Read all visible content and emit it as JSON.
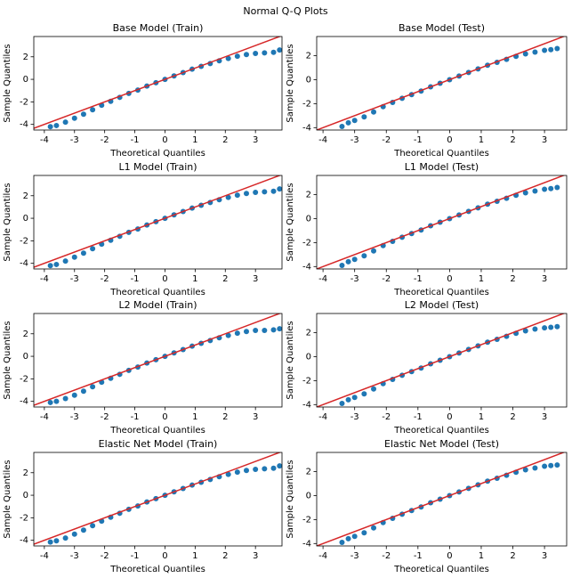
{
  "title": "Normal Q-Q Plots",
  "chart_data": [
    {
      "type": "scatter",
      "title": "Base Model (Train)",
      "xlabel": "Theoretical Quantiles",
      "ylabel": "Sample Quantiles",
      "xlim": [
        -4.35,
        3.88
      ],
      "ylim": [
        -4.5,
        3.8
      ],
      "xticks": [
        -4,
        -3,
        -2,
        -1,
        0,
        1,
        2,
        3
      ],
      "yticks": [
        -4,
        -2,
        0,
        2
      ],
      "series": [
        {
          "type": "scatter",
          "color": "#1f77b4",
          "x": [
            -3.8,
            -3.6,
            -3.3,
            -3.0,
            -2.7,
            -2.4,
            -2.1,
            -1.8,
            -1.5,
            -1.2,
            -0.9,
            -0.6,
            -0.3,
            0,
            0.3,
            0.6,
            0.9,
            1.2,
            1.5,
            1.8,
            2.1,
            2.4,
            2.7,
            3.0,
            3.3,
            3.6,
            3.8
          ],
          "values": [
            -4.2,
            -4.1,
            -3.8,
            -3.45,
            -3.1,
            -2.7,
            -2.3,
            -1.95,
            -1.6,
            -1.25,
            -0.95,
            -0.6,
            -0.3,
            0,
            0.3,
            0.6,
            0.9,
            1.15,
            1.4,
            1.65,
            1.85,
            2.05,
            2.2,
            2.3,
            2.35,
            2.4,
            2.6
          ]
        },
        {
          "type": "line",
          "color": "#d62728",
          "x": [
            -4.5,
            4
          ],
          "values": [
            -4.5,
            4
          ]
        }
      ]
    },
    {
      "type": "scatter",
      "title": "Base Model (Test)",
      "xlabel": "Theoretical Quantiles",
      "ylabel": "Sample Quantiles",
      "xlim": [
        -4.2,
        3.7
      ],
      "ylim": [
        -4.2,
        3.6
      ],
      "xticks": [
        -4,
        -3,
        -2,
        -1,
        0,
        1,
        2,
        3
      ],
      "yticks": [
        -4,
        -2,
        0,
        2
      ],
      "series": [
        {
          "type": "scatter",
          "color": "#1f77b4",
          "x": [
            -3.4,
            -3.2,
            -3.0,
            -2.7,
            -2.4,
            -2.1,
            -1.8,
            -1.5,
            -1.2,
            -0.9,
            -0.6,
            -0.3,
            0,
            0.3,
            0.6,
            0.9,
            1.2,
            1.5,
            1.8,
            2.1,
            2.4,
            2.7,
            3.0,
            3.2,
            3.4
          ],
          "values": [
            -3.9,
            -3.6,
            -3.4,
            -3.1,
            -2.7,
            -2.25,
            -1.9,
            -1.55,
            -1.25,
            -0.95,
            -0.6,
            -0.3,
            0,
            0.3,
            0.6,
            0.9,
            1.2,
            1.45,
            1.7,
            1.95,
            2.15,
            2.3,
            2.45,
            2.5,
            2.6
          ]
        },
        {
          "type": "line",
          "color": "#d62728",
          "x": [
            -4.5,
            4
          ],
          "values": [
            -4.5,
            4
          ]
        }
      ]
    },
    {
      "type": "scatter",
      "title": "L1 Model (Train)",
      "xlabel": "Theoretical Quantiles",
      "ylabel": "Sample Quantiles",
      "xlim": [
        -4.35,
        3.88
      ],
      "ylim": [
        -4.5,
        3.8
      ],
      "xticks": [
        -4,
        -3,
        -2,
        -1,
        0,
        1,
        2,
        3
      ],
      "yticks": [
        -4,
        -2,
        0,
        2
      ],
      "series": [
        {
          "type": "scatter",
          "color": "#1f77b4",
          "x": [
            -3.8,
            -3.6,
            -3.3,
            -3.0,
            -2.7,
            -2.4,
            -2.1,
            -1.8,
            -1.5,
            -1.2,
            -0.9,
            -0.6,
            -0.3,
            0,
            0.3,
            0.6,
            0.9,
            1.2,
            1.5,
            1.8,
            2.1,
            2.4,
            2.7,
            3.0,
            3.3,
            3.6,
            3.8
          ],
          "values": [
            -4.2,
            -4.1,
            -3.8,
            -3.45,
            -3.1,
            -2.7,
            -2.3,
            -1.95,
            -1.6,
            -1.25,
            -0.95,
            -0.6,
            -0.3,
            0,
            0.3,
            0.6,
            0.9,
            1.15,
            1.4,
            1.65,
            1.85,
            2.05,
            2.2,
            2.3,
            2.35,
            2.4,
            2.6
          ]
        },
        {
          "type": "line",
          "color": "#d62728",
          "x": [
            -4.5,
            4
          ],
          "values": [
            -4.5,
            4
          ]
        }
      ]
    },
    {
      "type": "scatter",
      "title": "L1 Model (Test)",
      "xlabel": "Theoretical Quantiles",
      "ylabel": "Sample Quantiles",
      "xlim": [
        -4.2,
        3.7
      ],
      "ylim": [
        -4.2,
        3.6
      ],
      "xticks": [
        -4,
        -3,
        -2,
        -1,
        0,
        1,
        2,
        3
      ],
      "yticks": [
        -4,
        -2,
        0,
        2
      ],
      "series": [
        {
          "type": "scatter",
          "color": "#1f77b4",
          "x": [
            -3.4,
            -3.2,
            -3.0,
            -2.7,
            -2.4,
            -2.1,
            -1.8,
            -1.5,
            -1.2,
            -0.9,
            -0.6,
            -0.3,
            0,
            0.3,
            0.6,
            0.9,
            1.2,
            1.5,
            1.8,
            2.1,
            2.4,
            2.7,
            3.0,
            3.2,
            3.4
          ],
          "values": [
            -3.9,
            -3.6,
            -3.4,
            -3.1,
            -2.7,
            -2.25,
            -1.9,
            -1.55,
            -1.25,
            -0.95,
            -0.6,
            -0.3,
            0,
            0.3,
            0.6,
            0.9,
            1.2,
            1.45,
            1.7,
            1.95,
            2.15,
            2.3,
            2.45,
            2.5,
            2.6
          ]
        },
        {
          "type": "line",
          "color": "#d62728",
          "x": [
            -4.5,
            4
          ],
          "values": [
            -4.5,
            4
          ]
        }
      ]
    },
    {
      "type": "scatter",
      "title": "L2 Model (Train)",
      "xlabel": "Theoretical Quantiles",
      "ylabel": "Sample Quantiles",
      "xlim": [
        -4.35,
        3.88
      ],
      "ylim": [
        -4.5,
        3.8
      ],
      "xticks": [
        -4,
        -3,
        -2,
        -1,
        0,
        1,
        2,
        3
      ],
      "yticks": [
        -4,
        -2,
        0,
        2
      ],
      "series": [
        {
          "type": "scatter",
          "color": "#1f77b4",
          "x": [
            -3.8,
            -3.6,
            -3.3,
            -3.0,
            -2.7,
            -2.4,
            -2.1,
            -1.8,
            -1.5,
            -1.2,
            -0.9,
            -0.6,
            -0.3,
            0,
            0.3,
            0.6,
            0.9,
            1.2,
            1.5,
            1.8,
            2.1,
            2.4,
            2.7,
            3.0,
            3.3,
            3.6,
            3.8
          ],
          "values": [
            -4.1,
            -4.0,
            -3.75,
            -3.45,
            -3.1,
            -2.7,
            -2.3,
            -1.95,
            -1.6,
            -1.25,
            -0.95,
            -0.6,
            -0.3,
            0,
            0.3,
            0.6,
            0.9,
            1.15,
            1.4,
            1.65,
            1.85,
            2.05,
            2.2,
            2.3,
            2.3,
            2.35,
            2.45
          ]
        },
        {
          "type": "line",
          "color": "#d62728",
          "x": [
            -4.5,
            4
          ],
          "values": [
            -4.5,
            4
          ]
        }
      ]
    },
    {
      "type": "scatter",
      "title": "L2 Model (Test)",
      "xlabel": "Theoretical Quantiles",
      "ylabel": "Sample Quantiles",
      "xlim": [
        -4.2,
        3.7
      ],
      "ylim": [
        -4.2,
        3.6
      ],
      "xticks": [
        -4,
        -3,
        -2,
        -1,
        0,
        1,
        2,
        3
      ],
      "yticks": [
        -4,
        -2,
        0,
        2
      ],
      "series": [
        {
          "type": "scatter",
          "color": "#1f77b4",
          "x": [
            -3.4,
            -3.2,
            -3.0,
            -2.7,
            -2.4,
            -2.1,
            -1.8,
            -1.5,
            -1.2,
            -0.9,
            -0.6,
            -0.3,
            0,
            0.3,
            0.6,
            0.9,
            1.2,
            1.5,
            1.8,
            2.1,
            2.4,
            2.7,
            3.0,
            3.2,
            3.4
          ],
          "values": [
            -3.9,
            -3.6,
            -3.4,
            -3.1,
            -2.7,
            -2.25,
            -1.9,
            -1.55,
            -1.25,
            -0.95,
            -0.6,
            -0.3,
            0,
            0.3,
            0.6,
            0.9,
            1.2,
            1.45,
            1.7,
            1.95,
            2.15,
            2.3,
            2.4,
            2.45,
            2.5
          ]
        },
        {
          "type": "line",
          "color": "#d62728",
          "x": [
            -4.5,
            4
          ],
          "values": [
            -4.5,
            4
          ]
        }
      ]
    },
    {
      "type": "scatter",
      "title": "Elastic Net Model (Train)",
      "xlabel": "Theoretical Quantiles",
      "ylabel": "Sample Quantiles",
      "xlim": [
        -4.35,
        3.88
      ],
      "ylim": [
        -4.5,
        3.8
      ],
      "xticks": [
        -4,
        -3,
        -2,
        -1,
        0,
        1,
        2,
        3
      ],
      "yticks": [
        -4,
        -2,
        0,
        2
      ],
      "series": [
        {
          "type": "scatter",
          "color": "#1f77b4",
          "x": [
            -3.8,
            -3.6,
            -3.3,
            -3.0,
            -2.7,
            -2.4,
            -2.1,
            -1.8,
            -1.5,
            -1.2,
            -0.9,
            -0.6,
            -0.3,
            0,
            0.3,
            0.6,
            0.9,
            1.2,
            1.5,
            1.8,
            2.1,
            2.4,
            2.7,
            3.0,
            3.3,
            3.6,
            3.8
          ],
          "values": [
            -4.15,
            -4.05,
            -3.8,
            -3.45,
            -3.1,
            -2.7,
            -2.3,
            -1.95,
            -1.6,
            -1.25,
            -0.95,
            -0.6,
            -0.3,
            0,
            0.3,
            0.6,
            0.9,
            1.15,
            1.4,
            1.65,
            1.85,
            2.05,
            2.2,
            2.3,
            2.35,
            2.4,
            2.6
          ]
        },
        {
          "type": "line",
          "color": "#d62728",
          "x": [
            -4.5,
            4
          ],
          "values": [
            -4.5,
            4
          ]
        }
      ]
    },
    {
      "type": "scatter",
      "title": "Elastic Net Model (Test)",
      "xlabel": "Theoretical Quantiles",
      "ylabel": "Sample Quantiles",
      "xlim": [
        -4.2,
        3.7
      ],
      "ylim": [
        -4.2,
        3.6
      ],
      "xticks": [
        -4,
        -3,
        -2,
        -1,
        0,
        1,
        2,
        3
      ],
      "yticks": [
        -4,
        -2,
        0,
        2
      ],
      "series": [
        {
          "type": "scatter",
          "color": "#1f77b4",
          "x": [
            -3.4,
            -3.2,
            -3.0,
            -2.7,
            -2.4,
            -2.1,
            -1.8,
            -1.5,
            -1.2,
            -0.9,
            -0.6,
            -0.3,
            0,
            0.3,
            0.6,
            0.9,
            1.2,
            1.5,
            1.8,
            2.1,
            2.4,
            2.7,
            3.0,
            3.2,
            3.4
          ],
          "values": [
            -3.9,
            -3.6,
            -3.4,
            -3.1,
            -2.7,
            -2.25,
            -1.9,
            -1.55,
            -1.25,
            -0.95,
            -0.6,
            -0.3,
            0,
            0.3,
            0.6,
            0.9,
            1.2,
            1.45,
            1.7,
            1.95,
            2.15,
            2.3,
            2.45,
            2.5,
            2.55
          ]
        },
        {
          "type": "line",
          "color": "#d62728",
          "x": [
            -4.5,
            4
          ],
          "values": [
            -4.5,
            4
          ]
        }
      ]
    }
  ]
}
